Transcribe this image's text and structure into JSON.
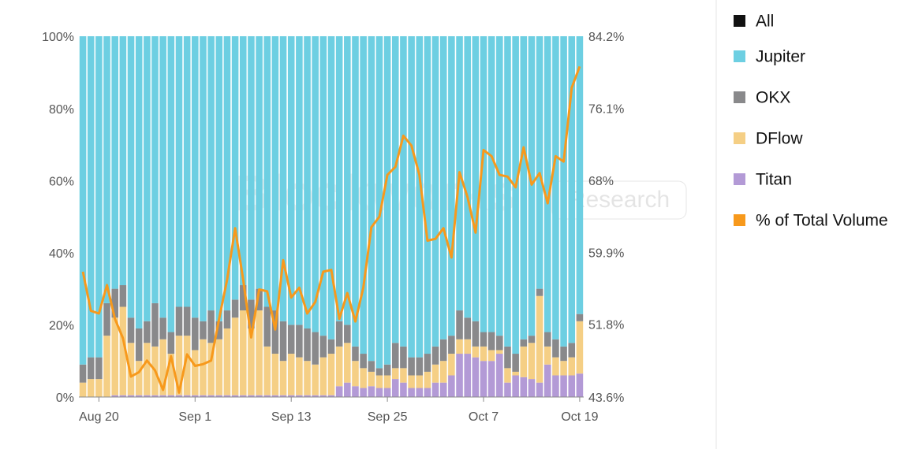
{
  "chart_data": {
    "type": "bar",
    "stacked": true,
    "watermark": [
      "Blockworks",
      "Research"
    ],
    "categories": [
      null,
      null,
      "Aug 20",
      null,
      null,
      null,
      null,
      null,
      null,
      null,
      null,
      null,
      null,
      null,
      "Sep 1",
      null,
      null,
      null,
      null,
      null,
      null,
      null,
      null,
      null,
      null,
      null,
      "Sep 13",
      null,
      null,
      null,
      null,
      null,
      null,
      null,
      null,
      null,
      null,
      null,
      "Sep 25",
      null,
      null,
      null,
      null,
      null,
      null,
      null,
      null,
      null,
      null,
      null,
      "Oct 7",
      null,
      null,
      null,
      null,
      null,
      null,
      null,
      null,
      null,
      null,
      null,
      "Oct 19"
    ],
    "series": [
      {
        "name": "All",
        "color": "#111111"
      },
      {
        "name": "Jupiter",
        "color": "#6dcfe2",
        "values": [
          91,
          89,
          89,
          74,
          70,
          69,
          78,
          81,
          79,
          74,
          78,
          82,
          75,
          75,
          78,
          79,
          76,
          79,
          76,
          73,
          69,
          73,
          70,
          75,
          76,
          79,
          80,
          80,
          81,
          82,
          83,
          84,
          79,
          80,
          86,
          88,
          90,
          92,
          91,
          85,
          86,
          89,
          89,
          88,
          86,
          84,
          83,
          76,
          78,
          79,
          82,
          82,
          83,
          86,
          88,
          84,
          83,
          70,
          82,
          84,
          86,
          85,
          77
        ]
      },
      {
        "name": "OKX",
        "color": "#89898b",
        "values": [
          5,
          6,
          6,
          9,
          8,
          6,
          7,
          9,
          6,
          12,
          6,
          6,
          8,
          8,
          9,
          5,
          9,
          5,
          5,
          5,
          7,
          8,
          6,
          11,
          12,
          11,
          8,
          9,
          9,
          9,
          6,
          4,
          7,
          5,
          4,
          4,
          3,
          2,
          3,
          7,
          6,
          5,
          5,
          5,
          5,
          6,
          5,
          8,
          6,
          7,
          4,
          5,
          4,
          6,
          5,
          2,
          2,
          2,
          4,
          5,
          4,
          4,
          2
        ]
      },
      {
        "name": "DFlow",
        "color": "#f5cf85",
        "values": [
          4,
          5,
          5,
          17,
          21.5,
          24.5,
          14.5,
          9.5,
          14.5,
          13.5,
          15.5,
          11.5,
          16.5,
          16.5,
          12.5,
          15.5,
          14.5,
          15.5,
          18.5,
          21.5,
          23.5,
          18.5,
          23.5,
          13.5,
          11.5,
          9.5,
          11.5,
          10.5,
          9.5,
          8.5,
          10.5,
          11.5,
          11,
          11,
          7,
          5.5,
          4,
          3.5,
          3.5,
          3,
          4,
          3.5,
          3.5,
          4.5,
          5,
          6,
          6,
          4,
          4,
          3,
          4,
          3,
          1,
          4,
          1,
          8.5,
          10,
          24,
          5,
          5,
          4,
          5,
          14.5
        ]
      },
      {
        "name": "Titan",
        "color": "#b39ad6",
        "values": [
          0,
          0,
          0,
          0,
          0.5,
          0.5,
          0.5,
          0.5,
          0.5,
          0.5,
          0.5,
          0.5,
          0.5,
          0.5,
          0.5,
          0.5,
          0.5,
          0.5,
          0.5,
          0.5,
          0.5,
          0.5,
          0.5,
          0.5,
          0.5,
          0.5,
          0.5,
          0.5,
          0.5,
          0.5,
          0.5,
          0.5,
          3,
          4,
          3,
          2.5,
          3,
          2.5,
          2.5,
          5,
          4,
          2.5,
          2.5,
          2.5,
          4,
          4,
          6,
          12,
          12,
          11,
          10,
          10,
          12,
          4,
          6,
          5.5,
          5,
          4,
          9,
          6,
          6,
          6,
          6.5
        ]
      },
      {
        "name": "% of Total Volume",
        "color": "#f7991c",
        "type": "line",
        "axis": "y2",
        "values": [
          57.7,
          53.3,
          53.0,
          56.2,
          52.4,
          50.2,
          45.9,
          46.4,
          47.7,
          46.6,
          44.4,
          48.2,
          44.1,
          48.4,
          47.1,
          47.3,
          47.7,
          52.4,
          56.8,
          62.6,
          56.8,
          50.3,
          55.7,
          55.5,
          51.2,
          59.0,
          54.8,
          55.9,
          53.0,
          54.3,
          57.7,
          57.9,
          52.4,
          55.3,
          52.1,
          55.9,
          62.7,
          63.9,
          68.6,
          69.5,
          73.0,
          71.9,
          68.6,
          61.2,
          61.4,
          62.6,
          59.3,
          68.9,
          66.1,
          62.1,
          71.4,
          70.7,
          68.6,
          68.4,
          67.2,
          71.7,
          67.5,
          68.8,
          65.4,
          70.7,
          70.1,
          78.4,
          80.8
        ]
      }
    ],
    "ylim": [
      0,
      100
    ],
    "yticks": [
      {
        "value": 0,
        "label": "0%"
      },
      {
        "value": 20,
        "label": "20%"
      },
      {
        "value": 40,
        "label": "40%"
      },
      {
        "value": 60,
        "label": "60%"
      },
      {
        "value": 80,
        "label": "80%"
      },
      {
        "value": 100,
        "label": "100%"
      }
    ],
    "y2lim": [
      43.6,
      84.2
    ],
    "y2ticks": [
      {
        "value": 43.6,
        "label": "43.6%"
      },
      {
        "value": 51.8,
        "label": "51.8%"
      },
      {
        "value": 59.9,
        "label": "59.9%"
      },
      {
        "value": 68,
        "label": "68%"
      },
      {
        "value": 76.1,
        "label": "76.1%"
      },
      {
        "value": 84.2,
        "label": "84.2%"
      }
    ],
    "grid": false,
    "legend": "right"
  }
}
